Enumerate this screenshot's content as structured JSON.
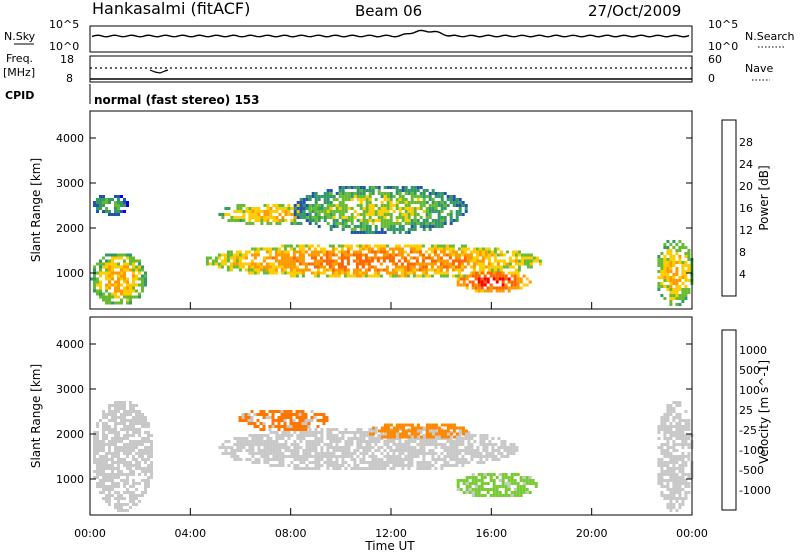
{
  "header": {
    "station": "Hankasalmi (fitACF)",
    "beam": "Beam 06",
    "date": "27/Oct/2009"
  },
  "top_panels": {
    "nsky_label": "N.Sky",
    "nsky_ticks": [
      "10^5",
      "10^0"
    ],
    "nsearch_label": "N.Search",
    "nsearch_ticks": [
      "10^5",
      "10^0"
    ],
    "freq_label": "Freq.",
    "freq_unit": "[MHz]",
    "freq_ticks": [
      "18",
      "8"
    ],
    "nave_label": "Nave",
    "nave_ticks": [
      "60",
      "0"
    ],
    "cpid_label": "CPID",
    "cpid_text": "normal (fast stereo) 153"
  },
  "chart_data": [
    {
      "type": "heatmap",
      "name": "power",
      "ylabel": "Slant Range [km]",
      "colorbar_label": "Power [dB]",
      "colorbar_ticks": [
        "28",
        "24",
        "20",
        "16",
        "12",
        "8",
        "4"
      ],
      "colorbar_colors": [
        "#ff0000",
        "#ff6600",
        "#ff9900",
        "#ffcc00",
        "#66bb33",
        "#339966",
        "#2255aa",
        "#0000ff"
      ],
      "yticks": [
        1000,
        2000,
        3000,
        4000
      ],
      "ylim": [
        200,
        4600
      ],
      "xlim": [
        0,
        24
      ],
      "regions": [
        {
          "t0": 0.0,
          "t1": 2.2,
          "r0": 300,
          "r1": 1500,
          "level": 3
        },
        {
          "t0": 0.0,
          "t1": 1.5,
          "r0": 2300,
          "r1": 2800,
          "level": 1
        },
        {
          "t0": 5.0,
          "t1": 9.5,
          "r0": 2100,
          "r1": 2600,
          "level": 3
        },
        {
          "t0": 4.5,
          "t1": 18.0,
          "r0": 900,
          "r1": 1700,
          "level": 4
        },
        {
          "t0": 8.0,
          "t1": 15.0,
          "r0": 1900,
          "r1": 3000,
          "level": 2
        },
        {
          "t0": 14.5,
          "t1": 17.5,
          "r0": 600,
          "r1": 1100,
          "level": 5
        },
        {
          "t0": 22.5,
          "t1": 24.0,
          "r0": 300,
          "r1": 1800,
          "level": 3
        }
      ]
    },
    {
      "type": "heatmap",
      "name": "velocity",
      "ylabel": "Slant Range [km]",
      "xlabel": "Time UT",
      "colorbar_label": "Velocity [m s^-1]",
      "colorbar_ticks": [
        "1000",
        "500",
        "100",
        "25",
        "-25",
        "-100",
        "-500",
        "-1000"
      ],
      "colorbar_colors": [
        "#2244bb",
        "#3377aa",
        "#44aa44",
        "#77cc33",
        "#c8c8c8",
        "#ffbb00",
        "#ff8800",
        "#ff5500",
        "#ff0000"
      ],
      "yticks": [
        1000,
        2000,
        3000,
        4000
      ],
      "ylim": [
        200,
        4600
      ],
      "xlim": [
        0,
        24
      ],
      "xtick_labels": [
        "00:00",
        "04:00",
        "08:00",
        "12:00",
        "16:00",
        "20:00",
        "00:00"
      ],
      "regions": [
        {
          "t0": 0.0,
          "t1": 2.5,
          "r0": 300,
          "r1": 2800,
          "color": "#c8c8c8"
        },
        {
          "t0": 5.0,
          "t1": 17.0,
          "r0": 1200,
          "r1": 2200,
          "color": "#c8c8c8"
        },
        {
          "t0": 5.8,
          "t1": 9.5,
          "r0": 2100,
          "r1": 2600,
          "color": "#ff7700"
        },
        {
          "t0": 11.0,
          "t1": 15.0,
          "r0": 1900,
          "r1": 2300,
          "color": "#ff8800"
        },
        {
          "t0": 14.5,
          "t1": 17.8,
          "r0": 600,
          "r1": 1200,
          "color": "#77cc33"
        },
        {
          "t0": 22.5,
          "t1": 24.0,
          "r0": 300,
          "r1": 2800,
          "color": "#c8c8c8"
        }
      ]
    }
  ]
}
